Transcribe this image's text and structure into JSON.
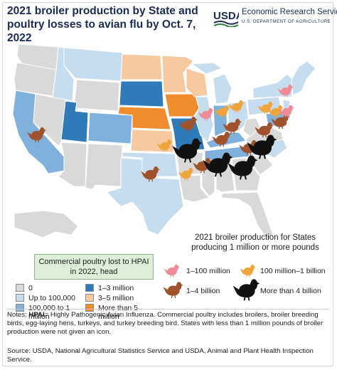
{
  "title": "2021 broiler production by State and poultry losses to avian flu by Oct. 7, 2022",
  "agency": {
    "name": "Economic Research Service",
    "department": "U.S. DEPARTMENT OF AGRICULTURE",
    "logo_text": "USDA"
  },
  "colors": {
    "none": "#d9d9d9",
    "up_to_100k": "#c6dcef",
    "100k_1m": "#7fb1dc",
    "1m_3m": "#2f7ab9",
    "3m_5m": "#f6c9a1",
    "more_5m": "#f08b2e",
    "chicken_1_100m": "#ef8b97",
    "chicken_100m_1b": "#f0a43c",
    "chicken_1_4b": "#a0522d",
    "chicken_4b_plus": "#111111"
  },
  "hpai_legend": {
    "header": "Commercial poultry lost to HPAI in 2022, head",
    "items": [
      {
        "label": "0",
        "color": "#d9d9d9"
      },
      {
        "label": "Up to 100,000",
        "color": "#c6dcef"
      },
      {
        "label": "100,000 to 1 million",
        "color": "#7fb1dc"
      },
      {
        "label": "1–3 million",
        "color": "#2f7ab9"
      },
      {
        "label": "3–5 million",
        "color": "#f6c9a1"
      },
      {
        "label": "More than 5 million",
        "color": "#f08b2e"
      }
    ]
  },
  "production_legend": {
    "header": "2021 broiler production for States producing 1 million or more pounds",
    "items": [
      {
        "label": "1–100 million",
        "icon": "chicken-pink-icon"
      },
      {
        "label": "100 million–1 billion",
        "icon": "chicken-orange-icon"
      },
      {
        "label": "1–4 billion",
        "icon": "chicken-brown-icon"
      },
      {
        "label": "More than 4 billion",
        "icon": "chicken-black-icon"
      }
    ]
  },
  "notes": {
    "label": "Notes:",
    "hpai_label": "HPAI",
    "text": "= Highly Pathogenic Avian Influenza. Commercial poultry includes broilers, broiler breeding birds, egg-laying hens, turkeys, and turkey breeding bird. States with less than 1 million pounds of broiler production were not given an icon."
  },
  "source": "Source: USDA, National Agricultural Statistics Service and USDA, Animal and Plant Health Inspection Service."
}
